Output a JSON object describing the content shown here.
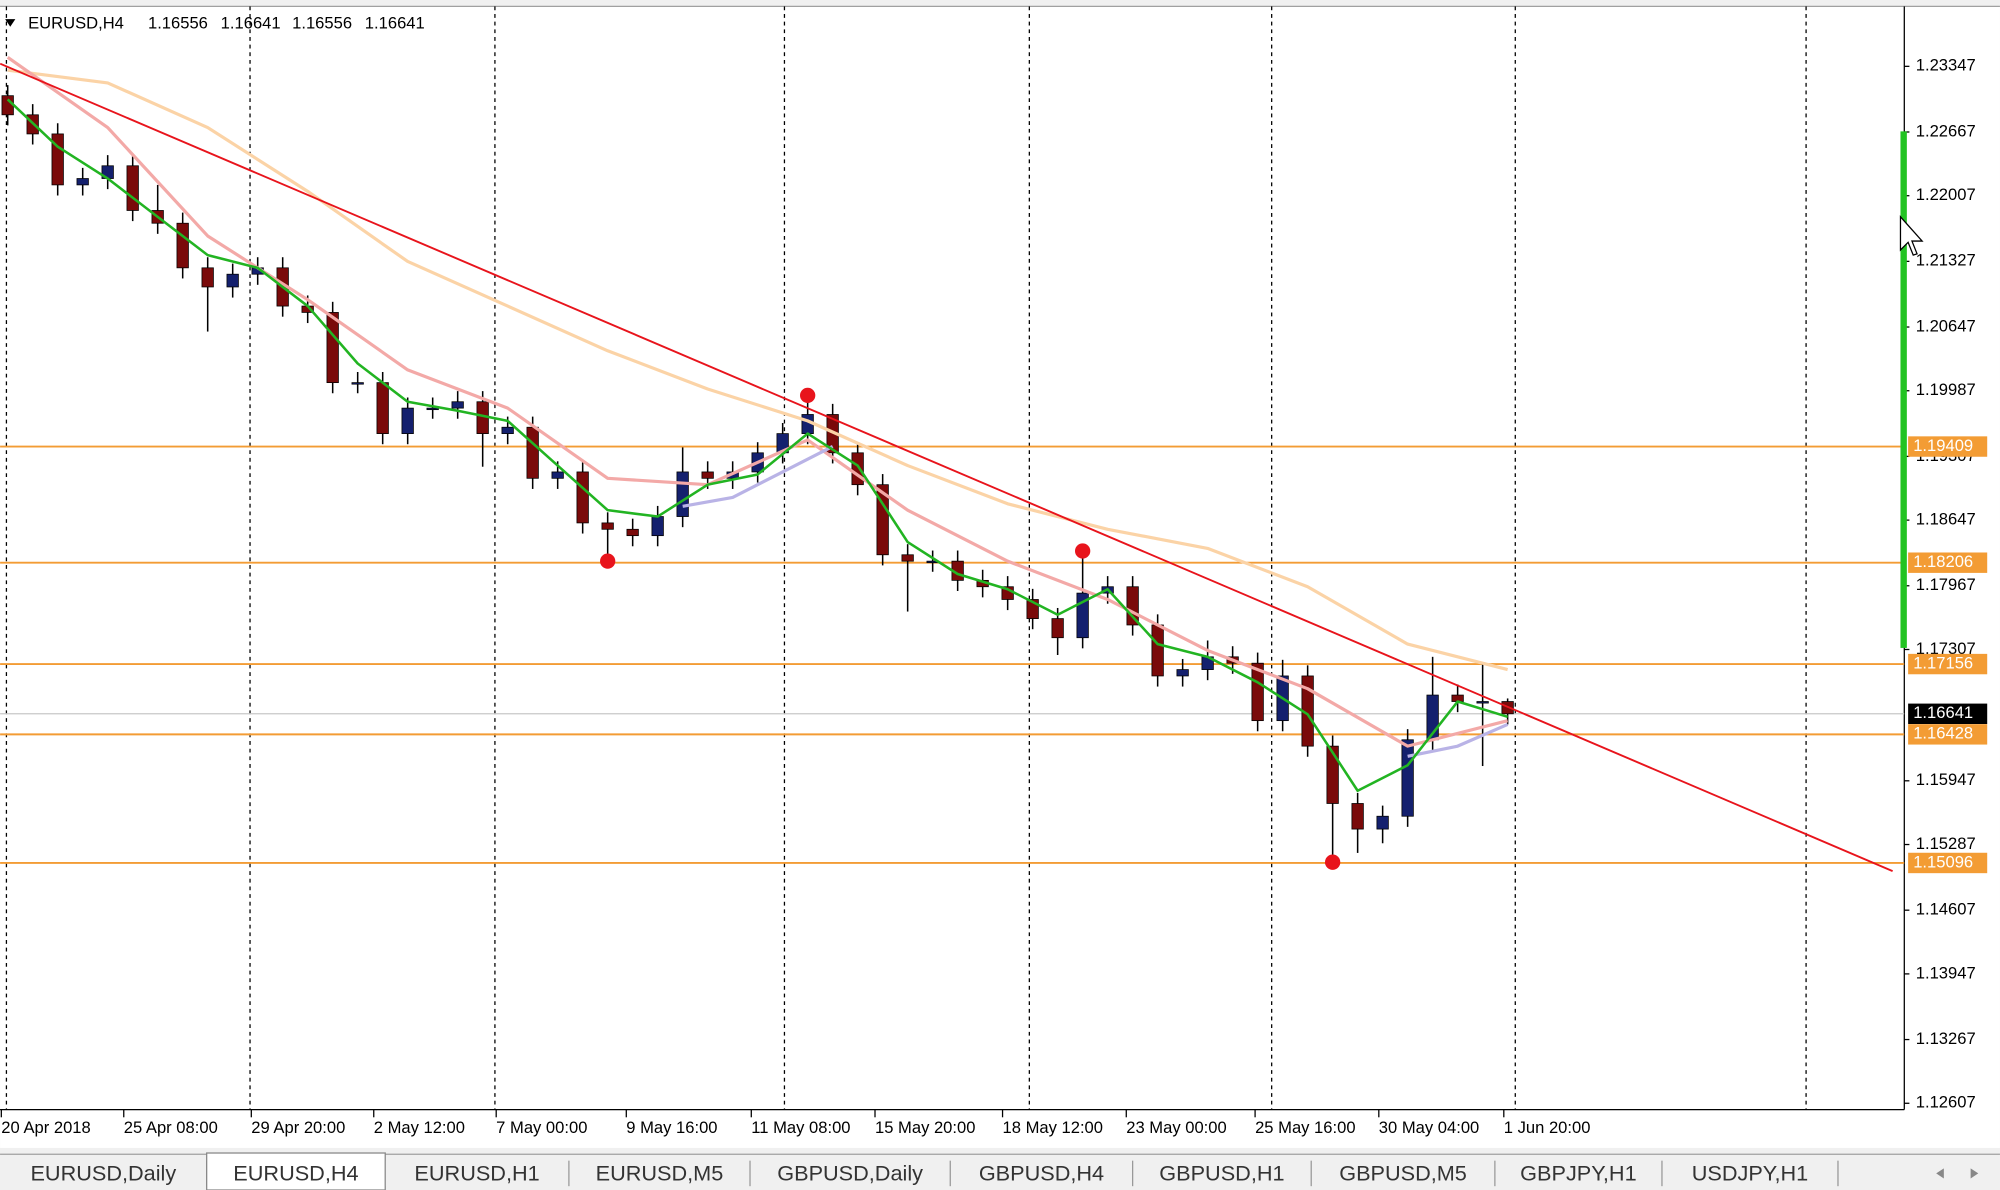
{
  "chart_data": {
    "type": "candlestick",
    "title": "EURUSD,H4",
    "header_values": [
      1.16556,
      1.16641,
      1.16556,
      1.16641
    ],
    "time_labels": [
      "20 Apr 2018",
      "25 Apr 08:00",
      "29 Apr 20:00",
      "2 May 12:00",
      "7 May 00:00",
      "9 May 16:00",
      "11 May 08:00",
      "15 May 20:00",
      "18 May 12:00",
      "23 May 00:00",
      "25 May 16:00",
      "30 May 04:00",
      "1 Jun 20:00"
    ],
    "open": [
      1.23043,
      1.22845,
      1.22647,
      1.22119,
      1.22185,
      1.22317,
      1.21854,
      1.21722,
      1.2126,
      1.21062,
      1.21194,
      1.2126,
      1.20864,
      1.20798,
      1.20071,
      1.20071,
      1.19543,
      1.19807,
      1.19807,
      1.19873,
      1.19543,
      1.19609,
      1.1908,
      1.19146,
      1.18618,
      1.18552,
      1.18486,
      1.18684,
      1.19146,
      1.1908,
      1.19146,
      1.19344,
      1.19543,
      1.19741,
      1.19344,
      1.19014,
      1.18288,
      1.18222,
      1.18222,
      1.18023,
      1.17957,
      1.17825,
      1.17627,
      1.17429,
      1.17891,
      1.17957,
      1.17561,
      1.17033,
      1.17099,
      1.17231,
      1.17165,
      1.1657,
      1.17033,
      1.16306,
      1.15712,
      1.15447,
      1.1558,
      1.16372,
      1.16835,
      1.16768,
      1.16768
    ],
    "high": [
      1.23153,
      1.22955,
      1.22757,
      1.22295,
      1.22427,
      1.22427,
      1.22119,
      1.21832,
      1.2137,
      1.21304,
      1.2137,
      1.2137,
      1.20974,
      1.20908,
      1.20181,
      1.20181,
      1.19917,
      1.19917,
      1.19983,
      1.19983,
      1.19719,
      1.19719,
      1.19256,
      1.19256,
      1.18728,
      1.18662,
      1.18794,
      1.194,
      1.19256,
      1.19256,
      1.19454,
      1.19653,
      1.19939,
      1.19851,
      1.19454,
      1.19124,
      1.18398,
      1.18332,
      1.18332,
      1.18133,
      1.18067,
      1.17935,
      1.17737,
      1.18327,
      1.18067,
      1.18067,
      1.17671,
      1.17209,
      1.174,
      1.17341,
      1.17275,
      1.172,
      1.17143,
      1.16416,
      1.15822,
      1.1569,
      1.16482,
      1.17231,
      1.16945,
      1.17165,
      1.168
    ],
    "low": [
      1.22735,
      1.22537,
      1.22009,
      1.22009,
      1.22075,
      1.21744,
      1.21612,
      1.2115,
      1.206,
      1.20952,
      1.21084,
      1.20754,
      1.20688,
      1.19961,
      1.19961,
      1.19433,
      1.19433,
      1.19697,
      1.19697,
      1.192,
      1.19433,
      1.1897,
      1.1897,
      1.18508,
      1.18222,
      1.18376,
      1.18376,
      1.18574,
      1.1897,
      1.1897,
      1.19036,
      1.19234,
      1.19433,
      1.19234,
      1.18904,
      1.18178,
      1.177,
      1.18112,
      1.17913,
      1.17847,
      1.17715,
      1.17517,
      1.1725,
      1.17319,
      1.17781,
      1.17451,
      1.16923,
      1.16923,
      1.16989,
      1.17055,
      1.1646,
      1.1646,
      1.16196,
      1.15104,
      1.152,
      1.153,
      1.1547,
      1.16262,
      1.16658,
      1.161,
      1.16531
    ],
    "close": [
      1.22845,
      1.22647,
      1.22119,
      1.22185,
      1.22317,
      1.21854,
      1.21722,
      1.2126,
      1.21062,
      1.21194,
      1.2126,
      1.20864,
      1.20798,
      1.20071,
      1.20071,
      1.19543,
      1.19807,
      1.19807,
      1.19873,
      1.19543,
      1.19609,
      1.1908,
      1.19146,
      1.18618,
      1.18552,
      1.18486,
      1.18684,
      1.19146,
      1.1908,
      1.19146,
      1.19344,
      1.19543,
      1.19741,
      1.19344,
      1.19014,
      1.18288,
      1.18222,
      1.18222,
      1.18023,
      1.17957,
      1.17825,
      1.17627,
      1.17429,
      1.17891,
      1.17957,
      1.17561,
      1.17033,
      1.17099,
      1.17231,
      1.17165,
      1.1657,
      1.17033,
      1.16306,
      1.15712,
      1.15447,
      1.1558,
      1.16372,
      1.16835,
      1.16768,
      1.16768,
      1.16641
    ],
    "bull_color": "#14206e",
    "bear_color": "#7a0a0a",
    "ylim": [
      1.12541,
      1.23968
    ],
    "yticks": [
      1.23347,
      1.22667,
      1.22007,
      1.21327,
      1.20647,
      1.19987,
      1.19307,
      1.18647,
      1.17967,
      1.17307,
      1.15947,
      1.15287,
      1.14607,
      1.13947,
      1.13267,
      1.12607
    ],
    "levels": {
      "values": [
        1.19409,
        1.18206,
        1.17156,
        1.16428,
        1.15096
      ],
      "color": "#f39c34"
    },
    "current_price": 1.16641,
    "moving_averages": [
      {
        "color": "#fbd3a6",
        "x": [
          0,
          4,
          8,
          12,
          16,
          20,
          24,
          28,
          32,
          36,
          40,
          44,
          48,
          52,
          56,
          60
        ],
        "values": [
          1.23307,
          1.23175,
          1.22713,
          1.22052,
          1.21326,
          1.20864,
          1.20401,
          1.20005,
          1.19675,
          1.19212,
          1.18816,
          1.18552,
          1.18354,
          1.17957,
          1.17363,
          1.17099
        ]
      },
      {
        "color": "#f3a9a7",
        "x": [
          0,
          4,
          8,
          12,
          16,
          20,
          24,
          28,
          32,
          36,
          40,
          44,
          48,
          52,
          56,
          60
        ],
        "values": [
          1.2344,
          1.22713,
          1.2159,
          1.2093,
          1.20203,
          1.19807,
          1.1908,
          1.19014,
          1.19477,
          1.1875,
          1.18222,
          1.17825,
          1.17297,
          1.16901,
          1.16306,
          1.1657
        ]
      },
      {
        "color": "#b9b3e6",
        "x": [
          27,
          29,
          31,
          33,
          34,
          56,
          58,
          60
        ],
        "values": [
          1.1879,
          1.18882,
          1.19146,
          1.1941,
          null,
          1.162,
          1.16306,
          1.16531
        ]
      },
      {
        "color": "#22b422",
        "x": [
          0,
          2,
          4,
          6,
          8,
          10,
          12,
          14,
          16,
          18,
          20,
          22,
          24,
          26,
          28,
          30,
          32,
          34,
          36,
          38,
          40,
          42,
          44,
          46,
          48,
          50,
          52,
          54,
          56,
          58,
          60
        ],
        "values": [
          1.23004,
          1.22515,
          1.22185,
          1.21788,
          1.21392,
          1.2126,
          1.20864,
          1.20269,
          1.19873,
          1.1978,
          1.19675,
          1.19212,
          1.1875,
          1.18684,
          1.19014,
          1.1912,
          1.19543,
          1.19212,
          1.1842,
          1.18089,
          1.17931,
          1.17667,
          1.17931,
          1.17363,
          1.17231,
          1.16967,
          1.16636,
          1.15844,
          1.16108,
          1.16768,
          1.1661
        ]
      }
    ],
    "trendline": {
      "color": "#e8141c",
      "x": [
        -0.3,
        75.4
      ],
      "values": [
        1.23374,
        1.15012
      ]
    },
    "markers": {
      "color": "#e8141c",
      "x": [
        24,
        32,
        43,
        53
      ],
      "values": [
        1.18222,
        1.19939,
        1.18327,
        1.15104
      ]
    }
  },
  "tabs": {
    "items": [
      "EURUSD,Daily",
      "EURUSD,H4",
      "EURUSD,H1",
      "EURUSD,M5",
      "GBPUSD,Daily",
      "GBPUSD,H4",
      "GBPUSD,H1",
      "GBPUSD,M5",
      "GBPJPY,H1",
      "USDJPY,H1"
    ],
    "active": 1
  }
}
